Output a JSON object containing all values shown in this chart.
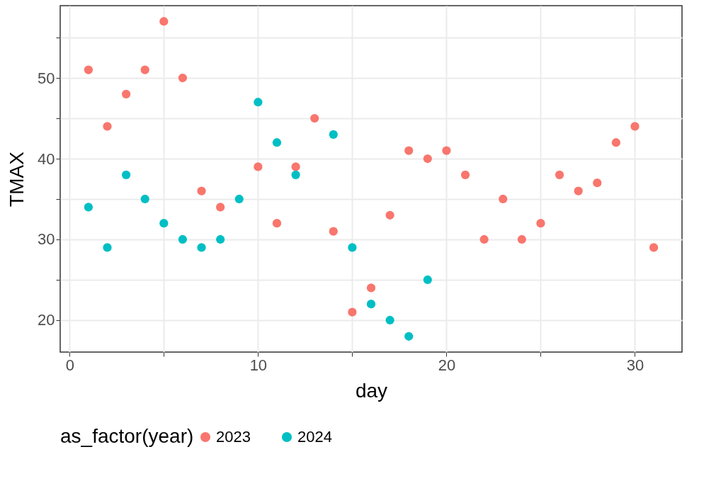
{
  "chart_data": {
    "type": "scatter",
    "xlabel": "day",
    "ylabel": "TMAX",
    "legend_title": "as_factor(year)",
    "series": [
      {
        "name": "2023",
        "color": "#f8766d",
        "x": [
          1,
          2,
          3,
          4,
          5,
          6,
          7,
          8,
          10,
          11,
          12,
          13,
          14,
          15,
          16,
          17,
          18,
          19,
          20,
          21,
          22,
          23,
          24,
          25,
          26,
          27,
          28,
          29,
          30,
          31
        ],
        "values": [
          51,
          44,
          48,
          51,
          57,
          50,
          36,
          34,
          39,
          32,
          39,
          45,
          31,
          21,
          24,
          33,
          41,
          40,
          41,
          38,
          30,
          35,
          30,
          32,
          38,
          36,
          37,
          42,
          44,
          29
        ]
      },
      {
        "name": "2024",
        "color": "#00bfc4",
        "x": [
          1,
          2,
          3,
          4,
          5,
          6,
          7,
          8,
          9,
          10,
          11,
          12,
          14,
          15,
          16,
          17,
          18,
          19
        ],
        "values": [
          34,
          29,
          38,
          35,
          32,
          30,
          29,
          30,
          35,
          47,
          42,
          38,
          43,
          29,
          22,
          20,
          18,
          25
        ]
      }
    ],
    "xlim": [
      -0.5,
      32.5
    ],
    "xticks": [
      0,
      {
        "value": 5,
        "label": null
      },
      10,
      {
        "value": 15,
        "label": null
      },
      20,
      {
        "value": 25,
        "label": null
      },
      30
    ],
    "ylim": [
      16.05,
      58.95
    ],
    "yticks": [
      20,
      {
        "value": 25,
        "label": null
      },
      30,
      {
        "value": 35,
        "label": null
      },
      40,
      {
        "value": 45,
        "label": null
      },
      50,
      {
        "value": 55,
        "label": null
      }
    ],
    "grid": true,
    "legend": "bottom",
    "marker": "circle"
  }
}
